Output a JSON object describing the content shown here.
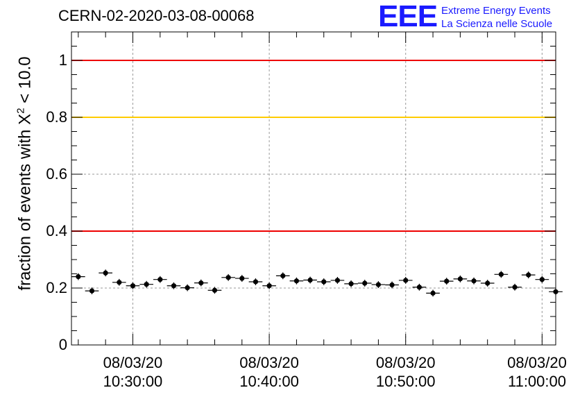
{
  "title": "CERN-02-2020-03-08-00068",
  "logo": {
    "mark": "EEE",
    "line1": "Extreme Energy Events",
    "line2": "La Scienza nelle Scuole"
  },
  "chart_data": {
    "type": "scatter",
    "title": "CERN-02-2020-03-08-00068",
    "xlabel": "",
    "ylabel": "fraction of events with X² < 10.0",
    "ylim": [
      0,
      1.1
    ],
    "xlim": [
      "10:25:30",
      "11:01:00"
    ],
    "yticks": [
      "0",
      "0.2",
      "0.4",
      "0.6",
      "0.8",
      "1"
    ],
    "xticks": [
      {
        "time": "10:30:00",
        "date": "08/03/20",
        "label": "10:30:00"
      },
      {
        "time": "10:40:00",
        "date": "08/03/20",
        "label": "10:40:00"
      },
      {
        "time": "10:50:00",
        "date": "08/03/20",
        "label": "10:50:00"
      },
      {
        "time": "11:00:00",
        "date": "08/03/20",
        "label": "11:00:00"
      }
    ],
    "grid": true,
    "bin_width_min": 1,
    "reference_lines": [
      {
        "y": 1.0,
        "color": "#ee0000"
      },
      {
        "y": 0.8,
        "color": "#ffcc00"
      },
      {
        "y": 0.4,
        "color": "#ee0000"
      }
    ],
    "x": [
      "10:26:00",
      "10:27:00",
      "10:28:00",
      "10:29:00",
      "10:30:00",
      "10:31:00",
      "10:32:00",
      "10:33:00",
      "10:34:00",
      "10:35:00",
      "10:36:00",
      "10:37:00",
      "10:38:00",
      "10:39:00",
      "10:40:00",
      "10:41:00",
      "10:42:00",
      "10:43:00",
      "10:44:00",
      "10:45:00",
      "10:46:00",
      "10:47:00",
      "10:48:00",
      "10:49:00",
      "10:50:00",
      "10:51:00",
      "10:52:00",
      "10:53:00",
      "10:54:00",
      "10:55:00",
      "10:56:00",
      "10:57:00",
      "10:58:00",
      "10:59:00",
      "11:00:00",
      "11:01:00"
    ],
    "y": [
      0.24,
      0.19,
      0.253,
      0.22,
      0.208,
      0.213,
      0.23,
      0.208,
      0.201,
      0.218,
      0.192,
      0.237,
      0.234,
      0.222,
      0.208,
      0.243,
      0.225,
      0.228,
      0.222,
      0.227,
      0.215,
      0.217,
      0.212,
      0.211,
      0.227,
      0.203,
      0.182,
      0.224,
      0.232,
      0.225,
      0.217,
      0.248,
      0.203,
      0.246,
      0.23,
      0.187
    ],
    "yerr": 0.012
  }
}
